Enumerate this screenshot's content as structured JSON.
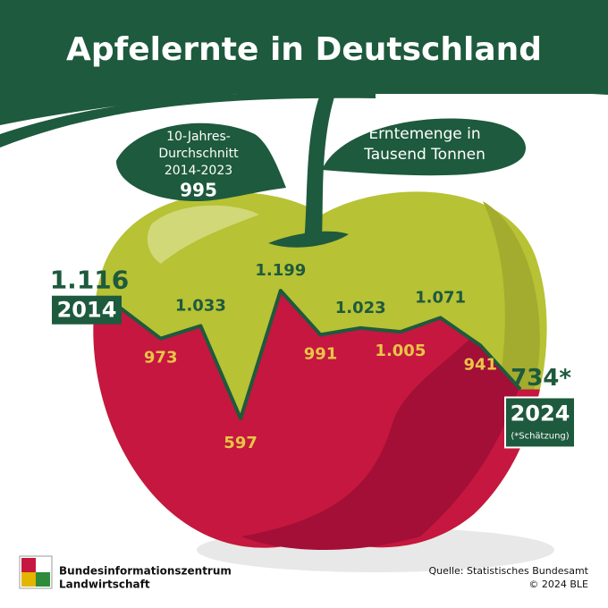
{
  "chart_data": {
    "type": "line",
    "title": "Apfelernte in Deutschland",
    "subtitle": [
      "Erntemenge in",
      "Tausend Tonnen"
    ],
    "categories": [
      "2014",
      null,
      null,
      null,
      null,
      null,
      null,
      null,
      null,
      null,
      "2024"
    ],
    "values": [
      1116,
      973,
      1033,
      597,
      1199,
      991,
      1023,
      1005,
      1071,
      941,
      734
    ],
    "value_labels": [
      "1.116",
      "973",
      "1.033",
      "597",
      "1.199",
      "991",
      "1.023",
      "1.005",
      "1.071",
      "941",
      "734*"
    ],
    "annotations": {
      "average_label": [
        "10-Jahres-",
        "Durchschnitt",
        "2014-2023"
      ],
      "average_value": 995,
      "estimate_note": "(*Schätzung)"
    },
    "source": "Quelle: Statistisches Bundesamt",
    "copyright": "© 2024 BLE",
    "publisher": [
      "Bundesinformationszentrum",
      "Landwirtschaft"
    ],
    "color": "#1e5a3d"
  }
}
